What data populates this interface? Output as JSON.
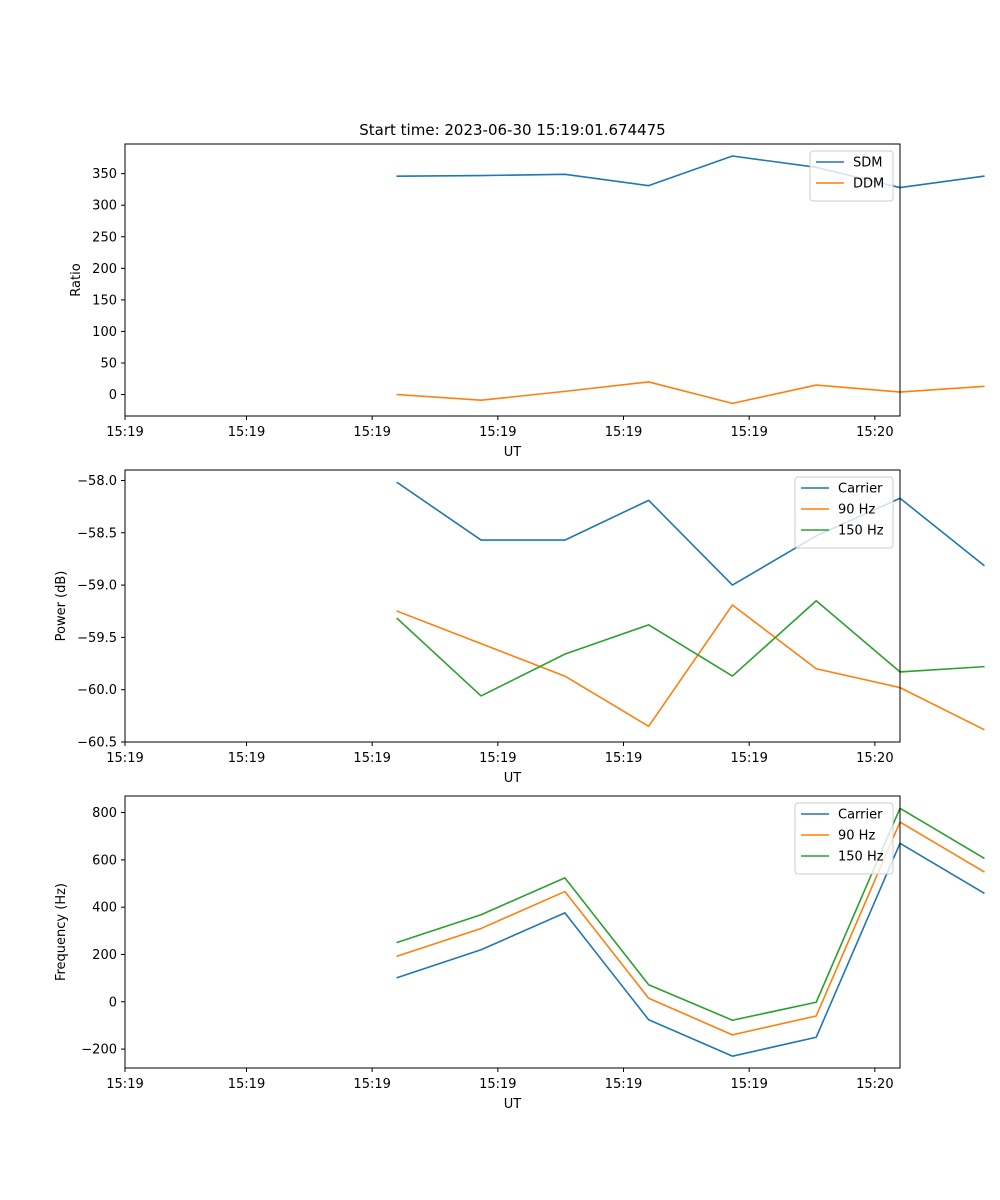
{
  "chart_data": [
    {
      "type": "line",
      "title": "Start time: 2023-06-30 15:19:01.674475",
      "xlabel": "UT",
      "ylabel": "Ratio",
      "x": [
        0.15,
        0.2,
        0.25,
        0.3,
        0.35,
        0.4,
        0.45,
        0.5
      ],
      "xlim": [
        -0.0125,
        0.45
      ],
      "x_ticks": [
        -0.0125,
        0.06,
        0.135,
        0.21,
        0.285,
        0.36,
        0.435
      ],
      "x_tick_labels": [
        "15:19",
        "15:19",
        "15:19",
        "15:19",
        "15:19",
        "15:19",
        "15:20"
      ],
      "ylim": [
        -34,
        397
      ],
      "y_ticks": [
        0,
        50,
        100,
        150,
        200,
        250,
        300,
        350
      ],
      "grid": false,
      "legend_position": "upper right",
      "series": [
        {
          "name": "SDM",
          "color": "#1f77b4",
          "values": [
            346,
            347,
            349,
            331,
            378,
            360,
            328,
            346
          ]
        },
        {
          "name": "DDM",
          "color": "#ff7f0e",
          "values": [
            0,
            -9,
            5,
            20,
            -14,
            15,
            4,
            13
          ]
        }
      ]
    },
    {
      "type": "line",
      "title": "",
      "xlabel": "UT",
      "ylabel": "Power (dB)",
      "x": [
        0.15,
        0.2,
        0.25,
        0.3,
        0.35,
        0.4,
        0.45,
        0.5
      ],
      "xlim": [
        -0.0125,
        0.45
      ],
      "x_ticks": [
        -0.0125,
        0.06,
        0.135,
        0.21,
        0.285,
        0.36,
        0.435
      ],
      "x_tick_labels": [
        "15:19",
        "15:19",
        "15:19",
        "15:19",
        "15:19",
        "15:19",
        "15:20"
      ],
      "ylim": [
        -60.5,
        -57.9
      ],
      "y_ticks": [
        -60.5,
        -60.0,
        -59.5,
        -59.0,
        -58.5,
        -58.0
      ],
      "y_tick_labels": [
        "−60.5",
        "−60.0",
        "−59.5",
        "−59.0",
        "−58.5",
        "−58.0"
      ],
      "grid": false,
      "legend_position": "upper right",
      "series": [
        {
          "name": "Carrier",
          "color": "#1f77b4",
          "values": [
            -58.02,
            -58.57,
            -58.57,
            -58.19,
            -59.0,
            -58.53,
            -58.17,
            -58.81
          ]
        },
        {
          "name": "90 Hz",
          "color": "#ff7f0e",
          "values": [
            -59.25,
            -59.56,
            -59.87,
            -60.35,
            -59.19,
            -59.8,
            -59.98,
            -60.38
          ]
        },
        {
          "name": "150 Hz",
          "color": "#2ca02c",
          "values": [
            -59.32,
            -60.06,
            -59.66,
            -59.38,
            -59.87,
            -59.15,
            -59.83,
            -59.78
          ]
        }
      ]
    },
    {
      "type": "line",
      "title": "",
      "xlabel": "UT",
      "ylabel": "Frequency (Hz)",
      "x": [
        0.15,
        0.2,
        0.25,
        0.3,
        0.35,
        0.4,
        0.45,
        0.5
      ],
      "xlim": [
        -0.0125,
        0.45
      ],
      "x_ticks": [
        -0.0125,
        0.06,
        0.135,
        0.21,
        0.285,
        0.36,
        0.435
      ],
      "x_tick_labels": [
        "15:19",
        "15:19",
        "15:19",
        "15:19",
        "15:19",
        "15:19",
        "15:20"
      ],
      "ylim": [
        -280,
        870
      ],
      "y_ticks": [
        -200,
        0,
        200,
        400,
        600,
        800
      ],
      "y_tick_labels": [
        "−200",
        "0",
        "200",
        "400",
        "600",
        "800"
      ],
      "grid": false,
      "legend_position": "upper right",
      "series": [
        {
          "name": "Carrier",
          "color": "#1f77b4",
          "values": [
            102,
            220,
            376,
            -76,
            -230,
            -150,
            670,
            460
          ]
        },
        {
          "name": "90 Hz",
          "color": "#ff7f0e",
          "values": [
            193,
            310,
            466,
            15,
            -140,
            -60,
            760,
            550
          ]
        },
        {
          "name": "150 Hz",
          "color": "#2ca02c",
          "values": [
            251,
            368,
            524,
            72,
            -78,
            -2,
            818,
            608
          ]
        }
      ]
    }
  ]
}
